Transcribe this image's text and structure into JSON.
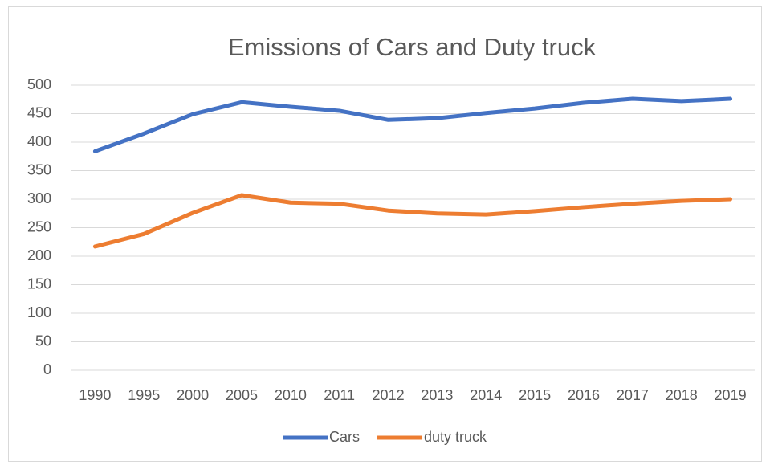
{
  "chart_data": {
    "type": "line",
    "title": "Emissions of Cars and Duty truck",
    "categories": [
      "1990",
      "1995",
      "2000",
      "2005",
      "2010",
      "2011",
      "2012",
      "2013",
      "2014",
      "2015",
      "2016",
      "2017",
      "2018",
      "2019"
    ],
    "series": [
      {
        "name": "Cars",
        "color": "#4472c4",
        "values": [
          384,
          415,
          449,
          470,
          462,
          455,
          439,
          442,
          451,
          459,
          469,
          476,
          472,
          476
        ]
      },
      {
        "name": "duty truck",
        "color": "#ed7d31",
        "values": [
          217,
          239,
          276,
          307,
          294,
          292,
          280,
          275,
          273,
          279,
          286,
          292,
          297,
          300
        ]
      }
    ],
    "ylim": [
      0,
      500
    ],
    "yticks": [
      0,
      50,
      100,
      150,
      200,
      250,
      300,
      350,
      400,
      450,
      500
    ],
    "grid": true,
    "legend": "bottom"
  }
}
